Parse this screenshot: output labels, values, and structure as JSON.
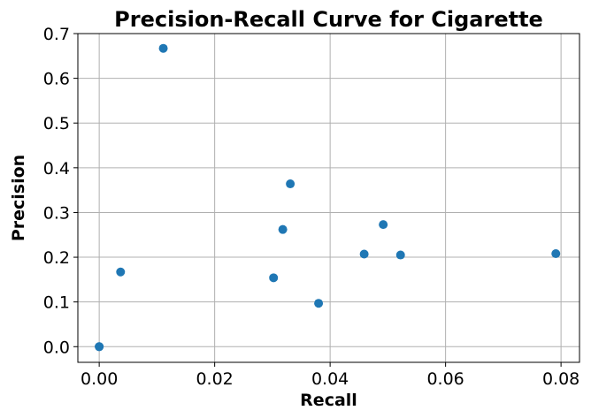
{
  "chart_data": {
    "type": "scatter",
    "title": "Precision-Recall Curve for Cigarette",
    "xlabel": "Recall",
    "ylabel": "Precision",
    "xlim": [
      -0.0037,
      0.0832
    ],
    "ylim": [
      -0.035,
      0.7
    ],
    "xticks": [
      0.0,
      0.02,
      0.04,
      0.06,
      0.08
    ],
    "xtick_labels": [
      "0.00",
      "0.02",
      "0.04",
      "0.06",
      "0.08"
    ],
    "yticks": [
      0.0,
      0.1,
      0.2,
      0.3,
      0.4,
      0.5,
      0.6,
      0.7
    ],
    "ytick_labels": [
      "0.0",
      "0.1",
      "0.2",
      "0.3",
      "0.4",
      "0.5",
      "0.6",
      "0.7"
    ],
    "grid": true,
    "marker_color": "#1f77b4",
    "series": [
      {
        "x": [
          0.0,
          0.0,
          0.0037,
          0.0111,
          0.0302,
          0.0318,
          0.0331,
          0.038,
          0.0459,
          0.0492,
          0.0522,
          0.0791
        ],
        "y": [
          0.0,
          0.0,
          0.167,
          0.667,
          0.154,
          0.262,
          0.364,
          0.097,
          0.207,
          0.273,
          0.205,
          0.208
        ]
      }
    ]
  }
}
